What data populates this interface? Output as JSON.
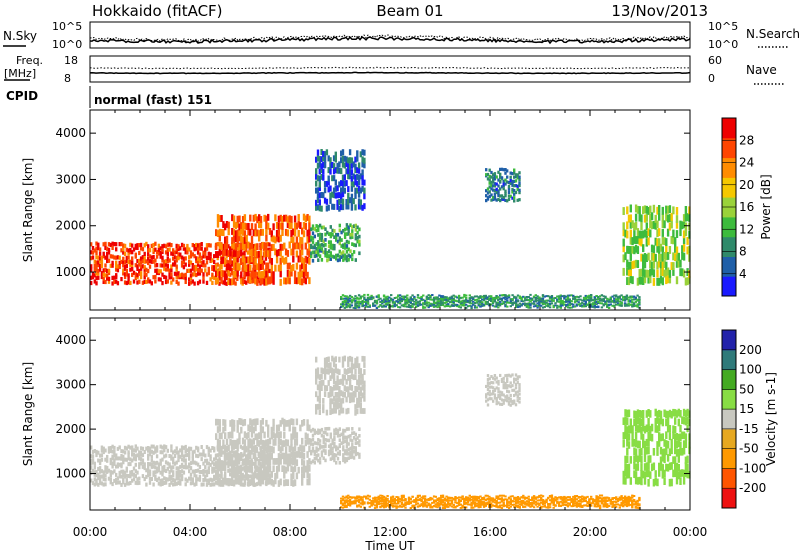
{
  "header": {
    "station": "Hokkaido (fitACF)",
    "beam": "Beam 01",
    "date": "13/Nov/2013"
  },
  "strip_panels": {
    "noise": {
      "left_label": "N.Sky",
      "right_label": "N.Search",
      "left_ticks": [
        "10^5",
        "10^0"
      ],
      "right_ticks": [
        "10^5",
        "10^0"
      ]
    },
    "frequency": {
      "left_label_line1": "Freq.",
      "left_label_line2": "[MHz]",
      "left_ticks": [
        "18",
        "8"
      ],
      "right_label": "Nave",
      "right_ticks": [
        "60",
        "0"
      ]
    },
    "cpid": {
      "label": "CPID",
      "value": "normal (fast) 151"
    }
  },
  "colors": {
    "power": [
      "#1a1aff",
      "#1f5fa8",
      "#2f8a6a",
      "#3dbb3d",
      "#9ad23a",
      "#f5c800",
      "#ff8c00",
      "#ff4500",
      "#ee0000"
    ],
    "velocity": [
      "#ee1111",
      "#ff5500",
      "#ff9900",
      "#e6a820",
      "#c8c8c0",
      "#88dd44",
      "#44aa22",
      "#2f7a7a",
      "#2222aa"
    ]
  },
  "chart_data": [
    {
      "type": "heatmap",
      "panel": "power",
      "title": "",
      "xlabel": "Time UT",
      "ylabel": "Slant Range [km]",
      "xlim": [
        "00:00",
        "24:00"
      ],
      "ylim": [
        180,
        4500
      ],
      "x_ticks": [
        "00:00",
        "04:00",
        "08:00",
        "12:00",
        "16:00",
        "20:00",
        "00:00"
      ],
      "y_ticks": [
        1000,
        2000,
        3000,
        4000
      ],
      "colorbar": {
        "label": "Power [dB]",
        "ticks": [
          4,
          8,
          12,
          16,
          20,
          24,
          28
        ],
        "range": [
          0,
          30
        ]
      },
      "regions": [
        {
          "t_start": 0.0,
          "t_end": 7.2,
          "r_min": 700,
          "r_max": 1600,
          "value": 26
        },
        {
          "t_start": 5.0,
          "t_end": 8.8,
          "r_min": 700,
          "r_max": 2200,
          "value": 24
        },
        {
          "t_start": 8.8,
          "t_end": 10.8,
          "r_min": 1200,
          "r_max": 2000,
          "value": 10
        },
        {
          "t_start": 9.0,
          "t_end": 11.0,
          "r_min": 2300,
          "r_max": 3600,
          "value": 5
        },
        {
          "t_start": 15.8,
          "t_end": 17.2,
          "r_min": 2500,
          "r_max": 3200,
          "value": 7
        },
        {
          "t_start": 21.3,
          "t_end": 24.0,
          "r_min": 700,
          "r_max": 2400,
          "value": 14
        },
        {
          "t_start": 10.0,
          "t_end": 22.0,
          "r_min": 200,
          "r_max": 450,
          "value": 9
        }
      ]
    },
    {
      "type": "heatmap",
      "panel": "velocity",
      "title": "",
      "xlabel": "Time UT",
      "ylabel": "Slant Range [km]",
      "xlim": [
        "00:00",
        "24:00"
      ],
      "ylim": [
        180,
        4500
      ],
      "x_ticks": [
        "00:00",
        "04:00",
        "08:00",
        "12:00",
        "16:00",
        "20:00",
        "00:00"
      ],
      "y_ticks": [
        1000,
        2000,
        3000,
        4000
      ],
      "colorbar": {
        "label": "Velocity [m s-1]",
        "ticks": [
          -200,
          -100,
          -50,
          -15,
          15,
          50,
          100,
          200
        ],
        "range": [
          -250,
          250
        ]
      },
      "regions": [
        {
          "t_start": 0.0,
          "t_end": 7.2,
          "r_min": 700,
          "r_max": 1600,
          "value": 0
        },
        {
          "t_start": 5.0,
          "t_end": 8.8,
          "r_min": 700,
          "r_max": 2200,
          "value": 0
        },
        {
          "t_start": 8.8,
          "t_end": 10.8,
          "r_min": 1200,
          "r_max": 2000,
          "value": 0
        },
        {
          "t_start": 9.0,
          "t_end": 11.0,
          "r_min": 2300,
          "r_max": 3600,
          "value": 5
        },
        {
          "t_start": 15.8,
          "t_end": 17.2,
          "r_min": 2500,
          "r_max": 3200,
          "value": 0
        },
        {
          "t_start": 21.3,
          "t_end": 24.0,
          "r_min": 700,
          "r_max": 2400,
          "value": 30
        },
        {
          "t_start": 10.0,
          "t_end": 22.0,
          "r_min": 200,
          "r_max": 450,
          "value": -60
        }
      ]
    }
  ]
}
